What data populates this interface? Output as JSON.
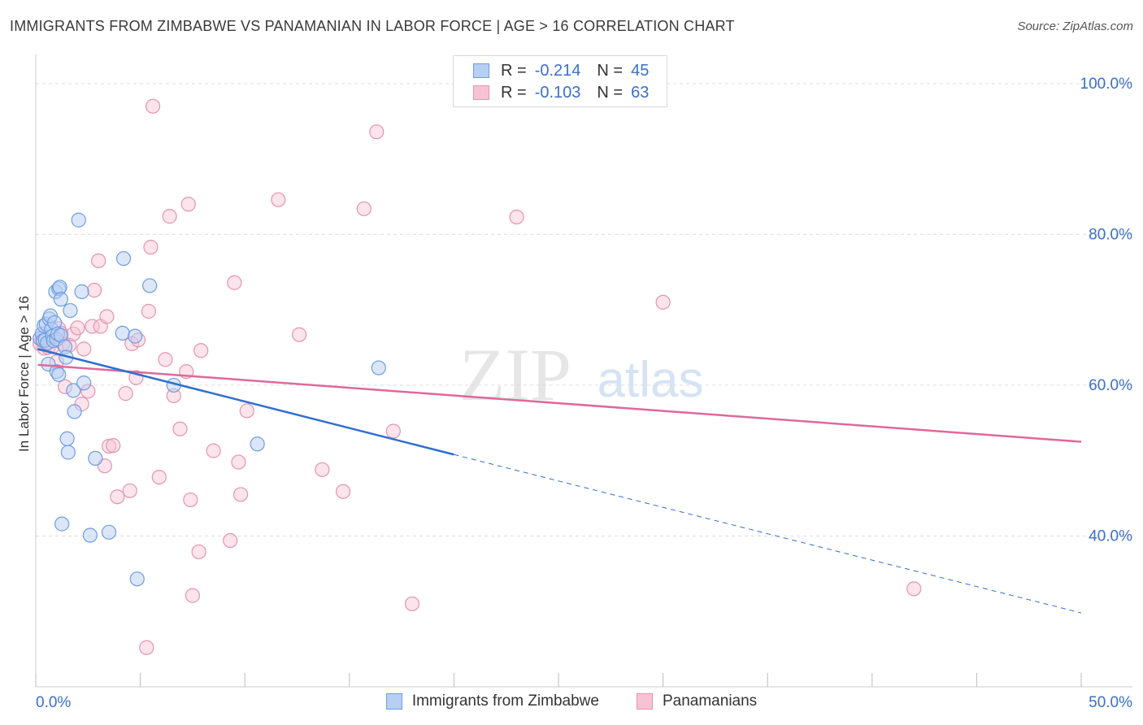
{
  "title": "IMMIGRANTS FROM ZIMBABWE VS PANAMANIAN IN LABOR FORCE | AGE > 16 CORRELATION CHART",
  "source": "Source: ZipAtlas.com",
  "watermark": {
    "zip": "ZIP",
    "atlas": "atlas"
  },
  "colors": {
    "blue_fill": "#b7cff3",
    "blue_stroke": "#6f9ce0",
    "blue_line": "#2f6fd0",
    "pink_fill": "#f7c3d4",
    "pink_stroke": "#e593b0",
    "pink_line": "#e0689a",
    "axis_text": "#3a6fcb",
    "grid": "#dddddd"
  },
  "legend": {
    "rows": [
      {
        "r_label": "R =",
        "r_value": "-0.214",
        "n_label": "N =",
        "n_value": "45"
      },
      {
        "r_label": "R =",
        "r_value": "-0.103",
        "n_label": "N =",
        "n_value": "63"
      }
    ]
  },
  "bottom_legend": {
    "series1": "Immigrants from Zimbabwe",
    "series2": "Panamanians"
  },
  "chart_data": {
    "type": "scatter",
    "title": "IMMIGRANTS FROM ZIMBABWE VS PANAMANIAN IN LABOR FORCE | AGE > 16 CORRELATION CHART",
    "xlabel": "",
    "ylabel": "In Labor Force | Age > 16",
    "xlim": [
      0,
      50
    ],
    "ylim": [
      20,
      103
    ],
    "x_tick_labels": [
      "0.0%",
      "50.0%"
    ],
    "y_ticks": [
      40,
      60,
      80,
      100
    ],
    "y_tick_labels": [
      "40.0%",
      "60.0%",
      "80.0%",
      "100.0%"
    ],
    "grid": true,
    "series": [
      {
        "name": "Immigrants from Zimbabwe",
        "R": -0.214,
        "N": 45,
        "trend": {
          "x0": 0.1,
          "y0": 64.8,
          "x1": 20.0,
          "y1": 50.8,
          "dash_to_x": 50.0,
          "dash_to_y": 29.8
        },
        "points": [
          [
            0.2,
            66.2
          ],
          [
            0.3,
            66.8
          ],
          [
            0.35,
            65.9
          ],
          [
            0.4,
            67.9
          ],
          [
            0.45,
            66.0
          ],
          [
            0.5,
            68.1
          ],
          [
            0.55,
            65.6
          ],
          [
            0.6,
            62.8
          ],
          [
            0.65,
            68.8
          ],
          [
            0.7,
            69.2
          ],
          [
            0.75,
            67.4
          ],
          [
            0.8,
            66.5
          ],
          [
            0.85,
            65.9
          ],
          [
            0.9,
            68.3
          ],
          [
            0.95,
            72.4
          ],
          [
            1.0,
            66.1
          ],
          [
            1.0,
            61.8
          ],
          [
            1.05,
            66.8
          ],
          [
            1.1,
            72.8
          ],
          [
            1.1,
            61.4
          ],
          [
            1.15,
            73.0
          ],
          [
            1.2,
            66.6
          ],
          [
            1.2,
            71.4
          ],
          [
            1.25,
            41.6
          ],
          [
            1.4,
            65.1
          ],
          [
            1.45,
            63.7
          ],
          [
            1.5,
            52.9
          ],
          [
            1.55,
            51.1
          ],
          [
            1.65,
            69.9
          ],
          [
            1.8,
            59.3
          ],
          [
            1.85,
            56.5
          ],
          [
            2.05,
            81.9
          ],
          [
            2.2,
            72.4
          ],
          [
            2.3,
            60.3
          ],
          [
            2.6,
            40.1
          ],
          [
            2.85,
            50.3
          ],
          [
            3.5,
            40.5
          ],
          [
            4.15,
            66.9
          ],
          [
            4.2,
            76.8
          ],
          [
            4.75,
            66.5
          ],
          [
            4.85,
            34.3
          ],
          [
            5.45,
            73.2
          ],
          [
            6.6,
            60.0
          ],
          [
            10.6,
            52.2
          ],
          [
            16.4,
            62.3
          ]
        ]
      },
      {
        "name": "Panamanians",
        "R": -0.103,
        "N": 63,
        "trend": {
          "x0": 0.1,
          "y0": 62.7,
          "x1": 50.0,
          "y1": 52.5
        },
        "points": [
          [
            0.2,
            65.5
          ],
          [
            0.3,
            66.1
          ],
          [
            0.4,
            64.9
          ],
          [
            0.5,
            65.9
          ],
          [
            0.6,
            65.0
          ],
          [
            0.8,
            65.1
          ],
          [
            1.0,
            63.1
          ],
          [
            1.1,
            67.5
          ],
          [
            1.2,
            66.9
          ],
          [
            1.3,
            65.5
          ],
          [
            1.4,
            59.8
          ],
          [
            1.6,
            65.3
          ],
          [
            1.8,
            66.8
          ],
          [
            2.0,
            67.6
          ],
          [
            2.2,
            57.5
          ],
          [
            2.3,
            64.8
          ],
          [
            2.5,
            59.2
          ],
          [
            2.7,
            67.8
          ],
          [
            2.8,
            72.6
          ],
          [
            3.0,
            76.5
          ],
          [
            3.1,
            67.8
          ],
          [
            3.3,
            49.3
          ],
          [
            3.4,
            69.1
          ],
          [
            3.5,
            51.9
          ],
          [
            3.7,
            52.0
          ],
          [
            3.9,
            45.2
          ],
          [
            4.3,
            58.9
          ],
          [
            4.5,
            46.0
          ],
          [
            4.6,
            65.5
          ],
          [
            4.8,
            61.0
          ],
          [
            4.9,
            66.0
          ],
          [
            5.3,
            25.2
          ],
          [
            5.4,
            69.8
          ],
          [
            5.5,
            78.3
          ],
          [
            5.6,
            97.0
          ],
          [
            5.9,
            47.8
          ],
          [
            6.2,
            63.4
          ],
          [
            6.4,
            82.4
          ],
          [
            6.6,
            58.6
          ],
          [
            6.9,
            54.2
          ],
          [
            7.2,
            61.8
          ],
          [
            7.3,
            84.0
          ],
          [
            7.4,
            44.8
          ],
          [
            7.5,
            32.1
          ],
          [
            7.8,
            37.9
          ],
          [
            7.9,
            64.6
          ],
          [
            8.5,
            51.3
          ],
          [
            9.3,
            39.4
          ],
          [
            9.5,
            73.6
          ],
          [
            9.7,
            49.8
          ],
          [
            9.8,
            45.5
          ],
          [
            10.1,
            56.6
          ],
          [
            11.6,
            84.6
          ],
          [
            12.6,
            66.7
          ],
          [
            13.7,
            48.8
          ],
          [
            14.7,
            45.9
          ],
          [
            15.7,
            83.4
          ],
          [
            16.3,
            93.6
          ],
          [
            17.1,
            53.9
          ],
          [
            18.0,
            31.0
          ],
          [
            23.0,
            82.3
          ],
          [
            30.0,
            71.0
          ],
          [
            42.0,
            33.0
          ]
        ]
      }
    ]
  }
}
